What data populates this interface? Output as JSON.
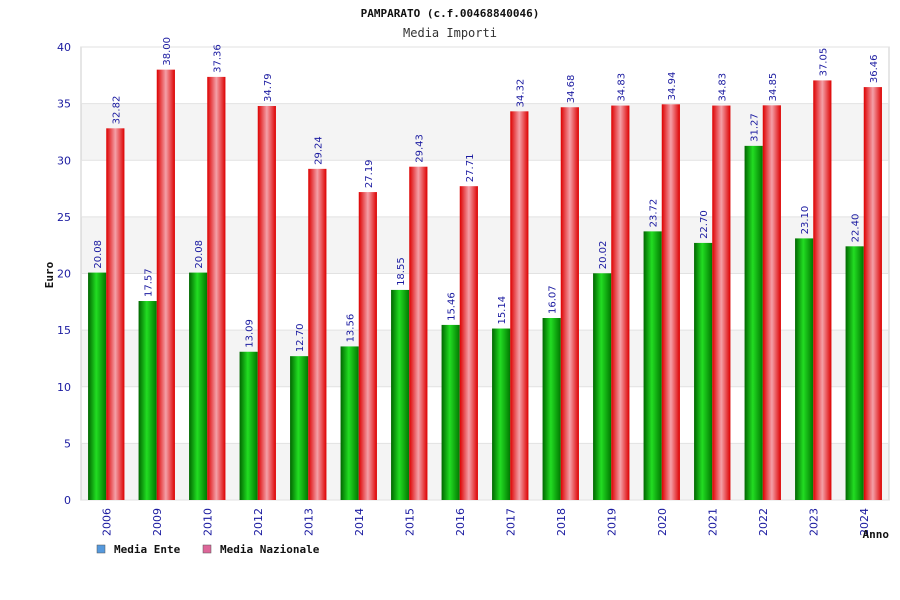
{
  "chart_data": {
    "type": "bar",
    "title": "PAMPARATO (c.f.00468840046)",
    "subtitle": "Media Importi",
    "ylabel": "Euro",
    "xlabel": "Anno",
    "ylim": [
      0,
      40
    ],
    "yticks": [
      0,
      5,
      10,
      15,
      20,
      25,
      30,
      35,
      40
    ],
    "grid": true,
    "legend_position": "bottom-left",
    "categories": [
      "2006",
      "2009",
      "2010",
      "2012",
      "2013",
      "2014",
      "2015",
      "2016",
      "2017",
      "2018",
      "2019",
      "2020",
      "2021",
      "2022",
      "2023",
      "2024"
    ],
    "series": [
      {
        "name": "Media Ente",
        "color": "#00aa00",
        "legend_color": "#5599dd",
        "values": [
          20.08,
          17.57,
          20.08,
          13.09,
          12.7,
          13.56,
          18.55,
          15.46,
          15.14,
          16.07,
          20.02,
          23.72,
          22.7,
          31.27,
          23.1,
          22.4
        ],
        "labels": [
          "20.08",
          "17.57",
          "20.08",
          "13.09",
          "12.70",
          "13.56",
          "18.55",
          "15.46",
          "15.14",
          "16.07",
          "20.02",
          "23.72",
          "22.70",
          "31.27",
          "23.10",
          "22.40"
        ]
      },
      {
        "name": "Media Nazionale",
        "color": "#ee1111",
        "legend_color": "#dd6699",
        "values": [
          32.82,
          38.0,
          37.36,
          34.79,
          29.24,
          27.19,
          29.43,
          27.71,
          34.32,
          34.68,
          34.83,
          34.94,
          34.83,
          34.85,
          37.05,
          36.46
        ],
        "labels": [
          "32.82",
          "38.00",
          "37.36",
          "34.79",
          "29.24",
          "27.19",
          "29.43",
          "27.71",
          "34.32",
          "34.68",
          "34.83",
          "34.94",
          "34.83",
          "34.85",
          "37.05",
          "36.46"
        ]
      }
    ]
  }
}
